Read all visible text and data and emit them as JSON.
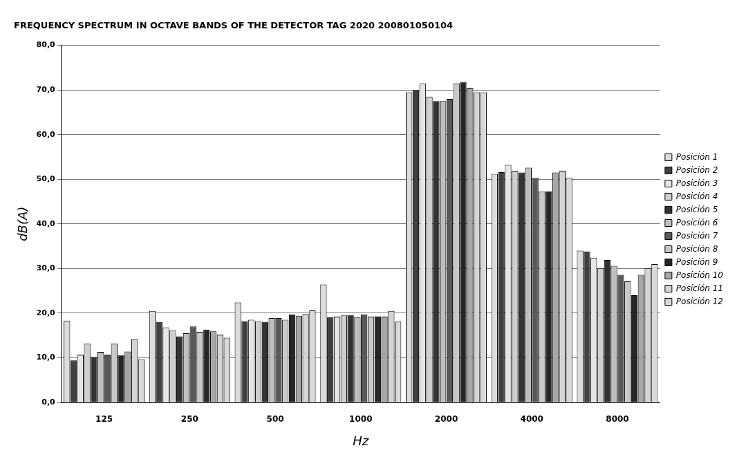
{
  "chart_data": {
    "type": "bar",
    "title": "FREQUENCY SPECTRUM IN OCTAVE BANDS OF THE DETECTOR TAG 2020 200801050104",
    "xlabel": "Hz",
    "ylabel": "dB(A)",
    "categories": [
      "125",
      "250",
      "500",
      "1000",
      "2000",
      "4000",
      "8000"
    ],
    "series": [
      {
        "name": "Posición 1",
        "color": "#dcdcdc",
        "values": [
          18.3,
          20.5,
          22.4,
          26.4,
          69.5,
          51.2,
          34.0
        ]
      },
      {
        "name": "Posición 2",
        "color": "#404040",
        "values": [
          9.4,
          18.0,
          18.2,
          19.1,
          70.0,
          51.6,
          33.8
        ]
      },
      {
        "name": "Posición 3",
        "color": "#e6e6e6",
        "values": [
          10.7,
          16.8,
          18.5,
          19.2,
          71.5,
          53.2,
          32.4
        ]
      },
      {
        "name": "Posición 4",
        "color": "#cfcfcf",
        "values": [
          13.2,
          16.2,
          18.2,
          19.5,
          68.5,
          51.9,
          30.0
        ]
      },
      {
        "name": "Posición 5",
        "color": "#333333",
        "values": [
          10.2,
          14.8,
          18.0,
          19.6,
          67.5,
          51.5,
          31.9
        ]
      },
      {
        "name": "Posición 6",
        "color": "#bfbfbf",
        "values": [
          11.3,
          15.5,
          18.9,
          19.1,
          67.5,
          52.6,
          30.6
        ]
      },
      {
        "name": "Posición 7",
        "color": "#595959",
        "values": [
          10.7,
          17.0,
          18.9,
          19.7,
          68.0,
          50.3,
          28.6
        ]
      },
      {
        "name": "Posición 8",
        "color": "#c8c8c8",
        "values": [
          13.2,
          15.8,
          18.5,
          19.2,
          71.5,
          47.2,
          27.1
        ]
      },
      {
        "name": "Posición 9",
        "color": "#262626",
        "values": [
          10.6,
          16.3,
          19.7,
          19.3,
          71.8,
          47.3,
          24.0
        ]
      },
      {
        "name": "Posición 10",
        "color": "#a6a6a6",
        "values": [
          11.4,
          15.9,
          19.4,
          19.2,
          70.5,
          51.5,
          28.6
        ]
      },
      {
        "name": "Posición 11",
        "color": "#d4d4d4",
        "values": [
          14.2,
          15.2,
          19.8,
          20.5,
          69.5,
          51.9,
          30.0
        ]
      },
      {
        "name": "Posición 12",
        "color": "#d9d9d9",
        "values": [
          9.7,
          14.5,
          20.6,
          18.1,
          69.5,
          50.3,
          31.0
        ]
      }
    ],
    "ylim": [
      0,
      80
    ],
    "yticks": [
      {
        "value": 0,
        "label": "0,0"
      },
      {
        "value": 10,
        "label": "10,0"
      },
      {
        "value": 20,
        "label": "20,0"
      },
      {
        "value": 30,
        "label": "30,0"
      },
      {
        "value": 40,
        "label": "40,0"
      },
      {
        "value": 50,
        "label": "50,0"
      },
      {
        "value": 60,
        "label": "60,0"
      },
      {
        "value": 70,
        "label": "70,0"
      },
      {
        "value": 80,
        "label": "80,0"
      }
    ],
    "grid": "y",
    "legend": "right"
  }
}
